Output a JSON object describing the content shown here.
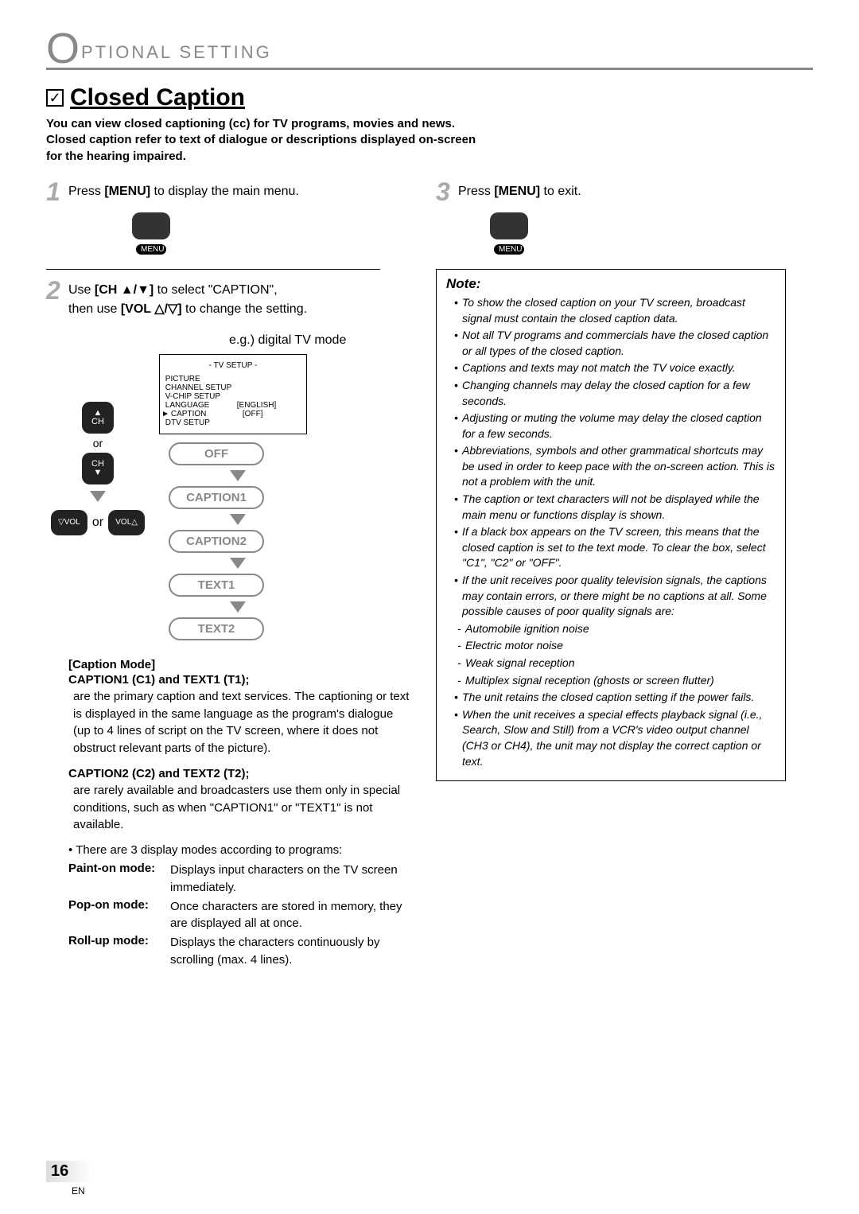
{
  "header": {
    "big_letter": "O",
    "rest": "PTIONAL   SETTING"
  },
  "title": {
    "checkbox": "✓",
    "text": "Closed Caption"
  },
  "intro": "You can view closed captioning (cc) for TV programs, movies and news.\nClosed caption refer to text of dialogue or descriptions displayed on-screen for the hearing impaired.",
  "steps": {
    "s1": {
      "num": "1",
      "text_a": "Press ",
      "bold": "[MENU]",
      "text_b": " to display the main menu.",
      "menu_label": "MENU"
    },
    "s2": {
      "num": "2",
      "line1_a": "Use ",
      "line1_b": "[CH ▲/▼]",
      "line1_c": " to select \"CAPTION\",",
      "line2_a": "then use ",
      "line2_b": "[VOL △/▽]",
      "line2_c": " to change the setting.",
      "eg": "e.g.) digital TV mode"
    },
    "s3": {
      "num": "3",
      "text_a": "Press ",
      "bold": "[MENU]",
      "text_b": " to exit.",
      "menu_label": "MENU"
    }
  },
  "tvsetup": {
    "title": "-   TV SETUP   -",
    "rows": [
      {
        "label": "PICTURE",
        "value": ""
      },
      {
        "label": "CHANNEL SETUP",
        "value": ""
      },
      {
        "label": "V-CHIP  SETUP",
        "value": ""
      },
      {
        "label": "LANGUAGE",
        "value": "[ENGLISH]"
      },
      {
        "label": "CAPTION",
        "value": "[OFF]",
        "selected": true
      },
      {
        "label": "DTV SETUP",
        "value": ""
      }
    ]
  },
  "options": [
    "OFF",
    "CAPTION1",
    "CAPTION2",
    "TEXT1",
    "TEXT2"
  ],
  "option_colors": {
    "border": "#888888",
    "text": "#888888"
  },
  "remote": {
    "ch": "CH",
    "or": "or",
    "vol_left": "▽VOL",
    "vol_right": "VOL△"
  },
  "caption_mode": {
    "heading": "[Caption Mode]",
    "c1_title": "CAPTION1 (C1) and TEXT1 (T1);",
    "c1_desc": "are the primary caption and text services.\nThe captioning or text is displayed in the same language as the program's dialogue\n(up to 4 lines of script on the TV screen, where it does not obstruct relevant parts of the picture).",
    "c2_title": "CAPTION2 (C2) and TEXT2 (T2);",
    "c2_desc": "are rarely available and broadcasters use them only in special conditions, such as when \"CAPTION1\" or \"TEXT1\" is not available.",
    "bullet": "There are 3 display modes according to programs:",
    "modes": [
      {
        "label": "Paint-on mode:",
        "desc": "Displays input characters on the TV screen immediately."
      },
      {
        "label": "Pop-on mode:",
        "desc": "Once characters are stored in memory, they are displayed all at once."
      },
      {
        "label": "Roll-up mode:",
        "desc": "Displays the characters continuously by scrolling (max. 4 lines)."
      }
    ]
  },
  "note": {
    "title": "Note:",
    "items": [
      "To show the closed caption on your TV screen, broadcast signal must contain the closed caption data.",
      "Not all TV programs and commercials have the closed caption or all types of the closed caption.",
      "Captions and texts may not match the TV voice exactly.",
      "Changing channels may delay the closed caption for a few seconds.",
      "Adjusting or muting the volume may delay the closed caption for a few seconds.",
      "Abbreviations, symbols and other grammatical shortcuts may be used in order to keep pace with the on-screen action. This is not a problem with the unit.",
      "The caption or text characters will not be displayed while the main menu or functions display is shown.",
      "If a black box appears on the TV screen, this means that the closed caption is set to the text mode. To clear the box, select \"C1\", \"C2\" or \"OFF\".",
      "If the unit receives poor quality television signals, the captions may contain errors, or there might be no captions at all. Some possible causes of poor quality signals are:",
      "The unit retains the closed caption setting if the power fails.",
      "When the unit receives a special effects playback signal (i.e., Search, Slow and Still) from a VCR's video output channel (CH3 or CH4), the unit may not display the correct caption or text."
    ],
    "sub_items": [
      "Automobile ignition noise",
      "Electric motor noise",
      "Weak signal reception",
      "Multiplex signal reception (ghosts or screen flutter)"
    ]
  },
  "page": {
    "num": "16",
    "lang": "EN"
  }
}
